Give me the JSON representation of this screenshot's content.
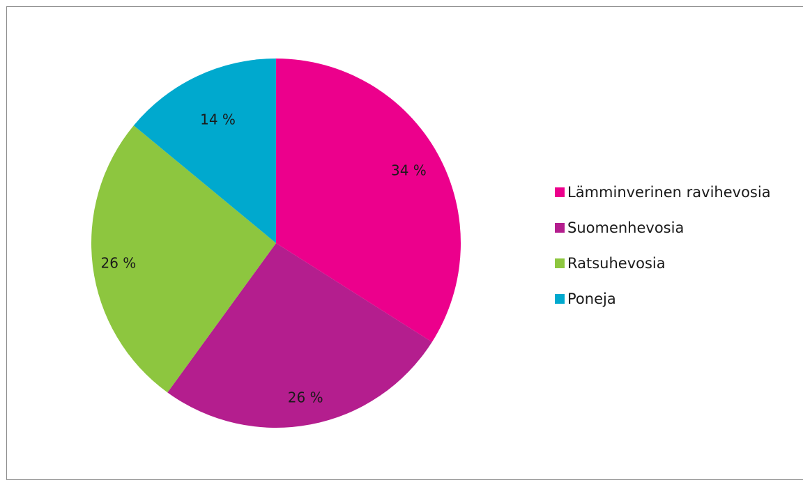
{
  "chart_data": {
    "type": "pie",
    "categories": [
      "Lämminverinen ravihevosia",
      "Suomenhevosia",
      "Ratsuhevosia",
      "Poneja"
    ],
    "values": [
      34,
      26,
      26,
      14
    ],
    "data_labels": [
      "34 %",
      "26 %",
      "26 %",
      "14 %"
    ],
    "colors": [
      "#ec008c",
      "#b41e8e",
      "#8dc63f",
      "#00a9ce"
    ],
    "legend_position": "right"
  }
}
